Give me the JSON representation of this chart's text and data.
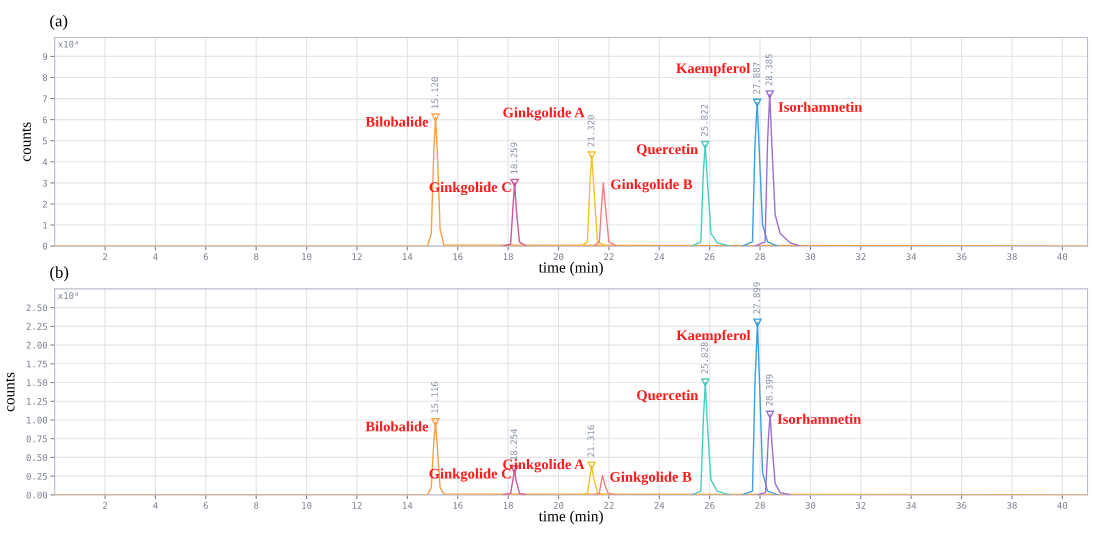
{
  "chart_data": [
    {
      "type": "line",
      "title": "(a)",
      "xlabel": "time (min)",
      "ylabel": "counts",
      "xlim": [
        0,
        41
      ],
      "xticks": [
        2,
        4,
        6,
        8,
        10,
        12,
        14,
        16,
        18,
        20,
        22,
        24,
        26,
        28,
        30,
        32,
        34,
        36,
        38,
        40
      ],
      "ylim": [
        0,
        9.9
      ],
      "yticks": [
        0,
        1,
        2,
        3,
        4,
        5,
        6,
        7,
        8,
        9
      ],
      "grid": true,
      "series": [
        {
          "name": "Bilobalide",
          "color": "#f5a04a",
          "x": [
            0,
            14.8,
            14.95,
            15.05,
            15.12,
            15.2,
            15.3,
            15.45,
            41
          ],
          "values": [
            0,
            0,
            0.6,
            4.5,
            6.1,
            4.2,
            0.8,
            0.05,
            0
          ]
        },
        {
          "name": "Ginkgolide C",
          "color": "#c9589a",
          "x": [
            17.8,
            18.1,
            18.2,
            18.259,
            18.32,
            18.45,
            18.7
          ],
          "values": [
            0,
            0.1,
            2.0,
            3.0,
            1.8,
            0.2,
            0
          ]
        },
        {
          "name": "Ginkgolide A",
          "color": "#f2c12e",
          "x": [
            20.9,
            21.15,
            21.25,
            21.32,
            21.4,
            21.55,
            21.9
          ],
          "values": [
            0,
            0.2,
            3.0,
            4.3,
            2.8,
            0.2,
            0
          ]
        },
        {
          "name": "Ginkgolide B",
          "color": "#f08080",
          "x": [
            21.4,
            21.62,
            21.72,
            21.78,
            21.85,
            22.0,
            22.3
          ],
          "values": [
            0,
            0.2,
            2.1,
            3.0,
            2.0,
            0.2,
            0
          ]
        },
        {
          "name": "Quercetin",
          "color": "#4dc9c0",
          "x": [
            25.3,
            25.65,
            25.75,
            25.822,
            25.9,
            26.05,
            26.3,
            26.8
          ],
          "values": [
            0,
            0.2,
            3.5,
            4.8,
            3.3,
            0.6,
            0.15,
            0
          ]
        },
        {
          "name": "Kaempferol",
          "color": "#3a9ee0",
          "x": [
            27.3,
            27.7,
            27.8,
            27.887,
            27.97,
            28.1,
            28.3,
            28.7
          ],
          "values": [
            0,
            0.2,
            4.8,
            6.8,
            4.5,
            1.0,
            0.2,
            0
          ]
        },
        {
          "name": "Isorhamnetin",
          "color": "#9b6fd0",
          "x": [
            27.8,
            28.2,
            28.3,
            28.385,
            28.47,
            28.6,
            28.8,
            29.2,
            29.6
          ],
          "values": [
            0,
            0.2,
            5.0,
            7.2,
            4.8,
            1.5,
            0.6,
            0.15,
            0
          ]
        }
      ],
      "annotations": [
        "x10⁴",
        {
          "text": "15.120",
          "x": 15.12,
          "y": 6.1
        },
        {
          "text": "18.259",
          "x": 18.259,
          "y": 3.0
        },
        {
          "text": "21.320",
          "x": 21.32,
          "y": 4.3
        },
        {
          "text": "25.822",
          "x": 25.822,
          "y": 4.8
        },
        {
          "text": "27.887",
          "x": 27.887,
          "y": 6.8
        },
        {
          "text": "28.385",
          "x": 28.385,
          "y": 7.2
        }
      ]
    },
    {
      "type": "line",
      "title": "(b)",
      "xlabel": "time (min)",
      "ylabel": "counts",
      "xlim": [
        0,
        41
      ],
      "xticks": [
        2,
        4,
        6,
        8,
        10,
        12,
        14,
        16,
        18,
        20,
        22,
        24,
        26,
        28,
        30,
        32,
        34,
        36,
        38,
        40
      ],
      "ylim": [
        0,
        2.75
      ],
      "yticks": [
        {
          "value": 0,
          "label": "0.00"
        },
        0.25,
        {
          "value": 0.5,
          "label": "0.50"
        },
        0.75,
        {
          "value": 1,
          "label": "1.00"
        },
        1.25,
        {
          "value": 1.5,
          "label": "1.50"
        },
        1.75,
        {
          "value": 2,
          "label": "2.00"
        },
        2.25,
        {
          "value": 2.5,
          "label": "2.50"
        }
      ],
      "grid": true,
      "series": [
        {
          "name": "Bilobalide",
          "color": "#f5a04a",
          "x": [
            0,
            14.8,
            14.95,
            15.05,
            15.116,
            15.19,
            15.3,
            15.45,
            41
          ],
          "values": [
            0,
            0,
            0.1,
            0.7,
            0.97,
            0.65,
            0.1,
            0.01,
            0
          ]
        },
        {
          "name": "Ginkgolide C",
          "color": "#c9589a",
          "x": [
            17.8,
            18.1,
            18.2,
            18.254,
            18.31,
            18.45,
            18.7
          ],
          "values": [
            0,
            0.02,
            0.22,
            0.34,
            0.2,
            0.02,
            0
          ]
        },
        {
          "name": "Ginkgolide A",
          "color": "#f2c12e",
          "x": [
            20.9,
            21.15,
            21.25,
            21.316,
            21.39,
            21.55,
            21.9
          ],
          "values": [
            0,
            0.02,
            0.25,
            0.39,
            0.24,
            0.02,
            0
          ]
        },
        {
          "name": "Ginkgolide B",
          "color": "#f08080",
          "x": [
            21.4,
            21.62,
            21.7,
            21.75,
            21.82,
            21.97,
            22.3
          ],
          "values": [
            0,
            0.02,
            0.18,
            0.26,
            0.16,
            0.02,
            0
          ]
        },
        {
          "name": "Quercetin",
          "color": "#4dc9c0",
          "x": [
            25.3,
            25.65,
            25.75,
            25.828,
            25.9,
            26.05,
            26.3,
            26.8
          ],
          "values": [
            0,
            0.05,
            1.0,
            1.5,
            1.0,
            0.2,
            0.05,
            0
          ]
        },
        {
          "name": "Kaempferol",
          "color": "#3a9ee0",
          "x": [
            27.3,
            27.7,
            27.8,
            27.899,
            27.98,
            28.1,
            28.3,
            28.7
          ],
          "values": [
            0,
            0.05,
            1.5,
            2.3,
            1.5,
            0.3,
            0.05,
            0
          ]
        },
        {
          "name": "Isorhamnetin",
          "color": "#9b6fd0",
          "x": [
            27.9,
            28.22,
            28.32,
            28.399,
            28.47,
            28.6,
            28.8,
            29.2
          ],
          "values": [
            0,
            0.03,
            0.7,
            1.07,
            0.7,
            0.15,
            0.03,
            0
          ]
        }
      ],
      "annotations": [
        "x10⁴",
        {
          "text": "15.116",
          "x": 15.116,
          "y": 0.97
        },
        {
          "text": "18.254",
          "x": 18.254,
          "y": 0.34
        },
        {
          "text": "21.316",
          "x": 21.316,
          "y": 0.39
        },
        {
          "text": "25.828",
          "x": 25.828,
          "y": 1.5
        },
        {
          "text": "27.899",
          "x": 27.899,
          "y": 2.3
        },
        {
          "text": "28.399",
          "x": 28.399,
          "y": 1.07
        }
      ]
    }
  ]
}
